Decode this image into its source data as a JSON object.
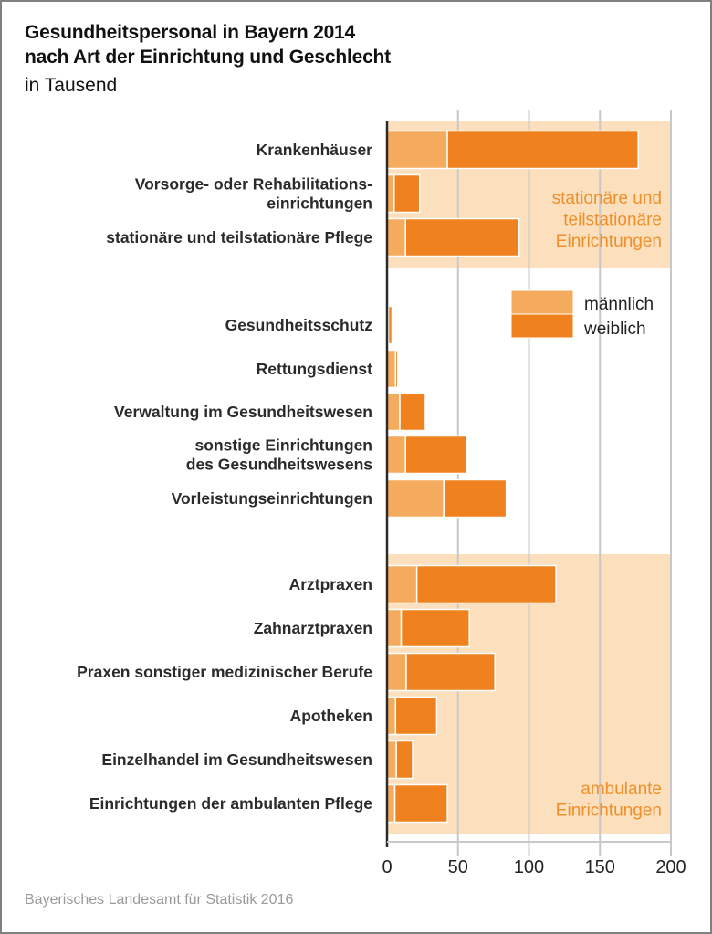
{
  "title_line1": "Gesundheitspersonal in Bayern 2014",
  "title_line2": "nach Art der Einrichtung und Geschlecht",
  "subtitle": "in Tausend",
  "source": "Bayerisches Landesamt für Statistik 2016",
  "colors": {
    "male": "#f5ab5e",
    "female": "#ef821e",
    "band": "#fce0bd",
    "group_label": "#ef8f2a",
    "grid": "#c8c8c8",
    "axis": "#2b2b2b"
  },
  "chart_data": {
    "type": "bar",
    "orientation": "horizontal",
    "stacked": true,
    "title": "Gesundheitspersonal in Bayern 2014 nach Art der Einrichtung und Geschlecht",
    "unit": "in Tausend",
    "xlim": [
      0,
      200
    ],
    "xticks": [
      "0",
      "50",
      "100",
      "150",
      "200"
    ],
    "xtick_values": [
      0,
      50,
      100,
      150,
      200
    ],
    "grid": true,
    "legend": {
      "position": "top-right",
      "entries": [
        "männlich",
        "weiblich"
      ]
    },
    "categories": [
      [
        "Krankenhäuser"
      ],
      [
        "Vorsorge- oder Rehabilitations-",
        "einrichtungen"
      ],
      [
        "stationäre und teilstationäre Pflege"
      ],
      [
        "Gesundheitsschutz"
      ],
      [
        "Rettungsdienst"
      ],
      [
        "Verwaltung im Gesundheitswesen"
      ],
      [
        "sonstige Einrichtungen",
        "des Gesundheitswesens"
      ],
      [
        "Vorleistungseinrichtungen"
      ],
      [
        "Arztpraxen"
      ],
      [
        "Zahnarztpraxen"
      ],
      [
        "Praxen sonstiger medizinischer Berufe"
      ],
      [
        "Apotheken"
      ],
      [
        "Einzelhandel im Gesundheitswesen"
      ],
      [
        "Einrichtungen der ambulanten Pflege"
      ]
    ],
    "series": [
      {
        "name": "männlich",
        "values": [
          42.5,
          5,
          13,
          1,
          6,
          9,
          13,
          40,
          21,
          10,
          13.5,
          6,
          6.5,
          5.5
        ]
      },
      {
        "name": "weiblich",
        "values": [
          134.5,
          18,
          80,
          2.5,
          1.5,
          18,
          43,
          44,
          98,
          48,
          62.5,
          29,
          11.5,
          37
        ]
      }
    ],
    "groups": [
      {
        "label": [
          "stationäre und",
          "teilstationäre",
          "Einrichtungen"
        ],
        "from": 0,
        "to": 2,
        "shaded": true
      },
      {
        "label": [],
        "from": 3,
        "to": 7,
        "shaded": false
      },
      {
        "label": [
          "ambulante",
          "Einrichtungen"
        ],
        "from": 8,
        "to": 13,
        "shaded": true
      }
    ]
  }
}
